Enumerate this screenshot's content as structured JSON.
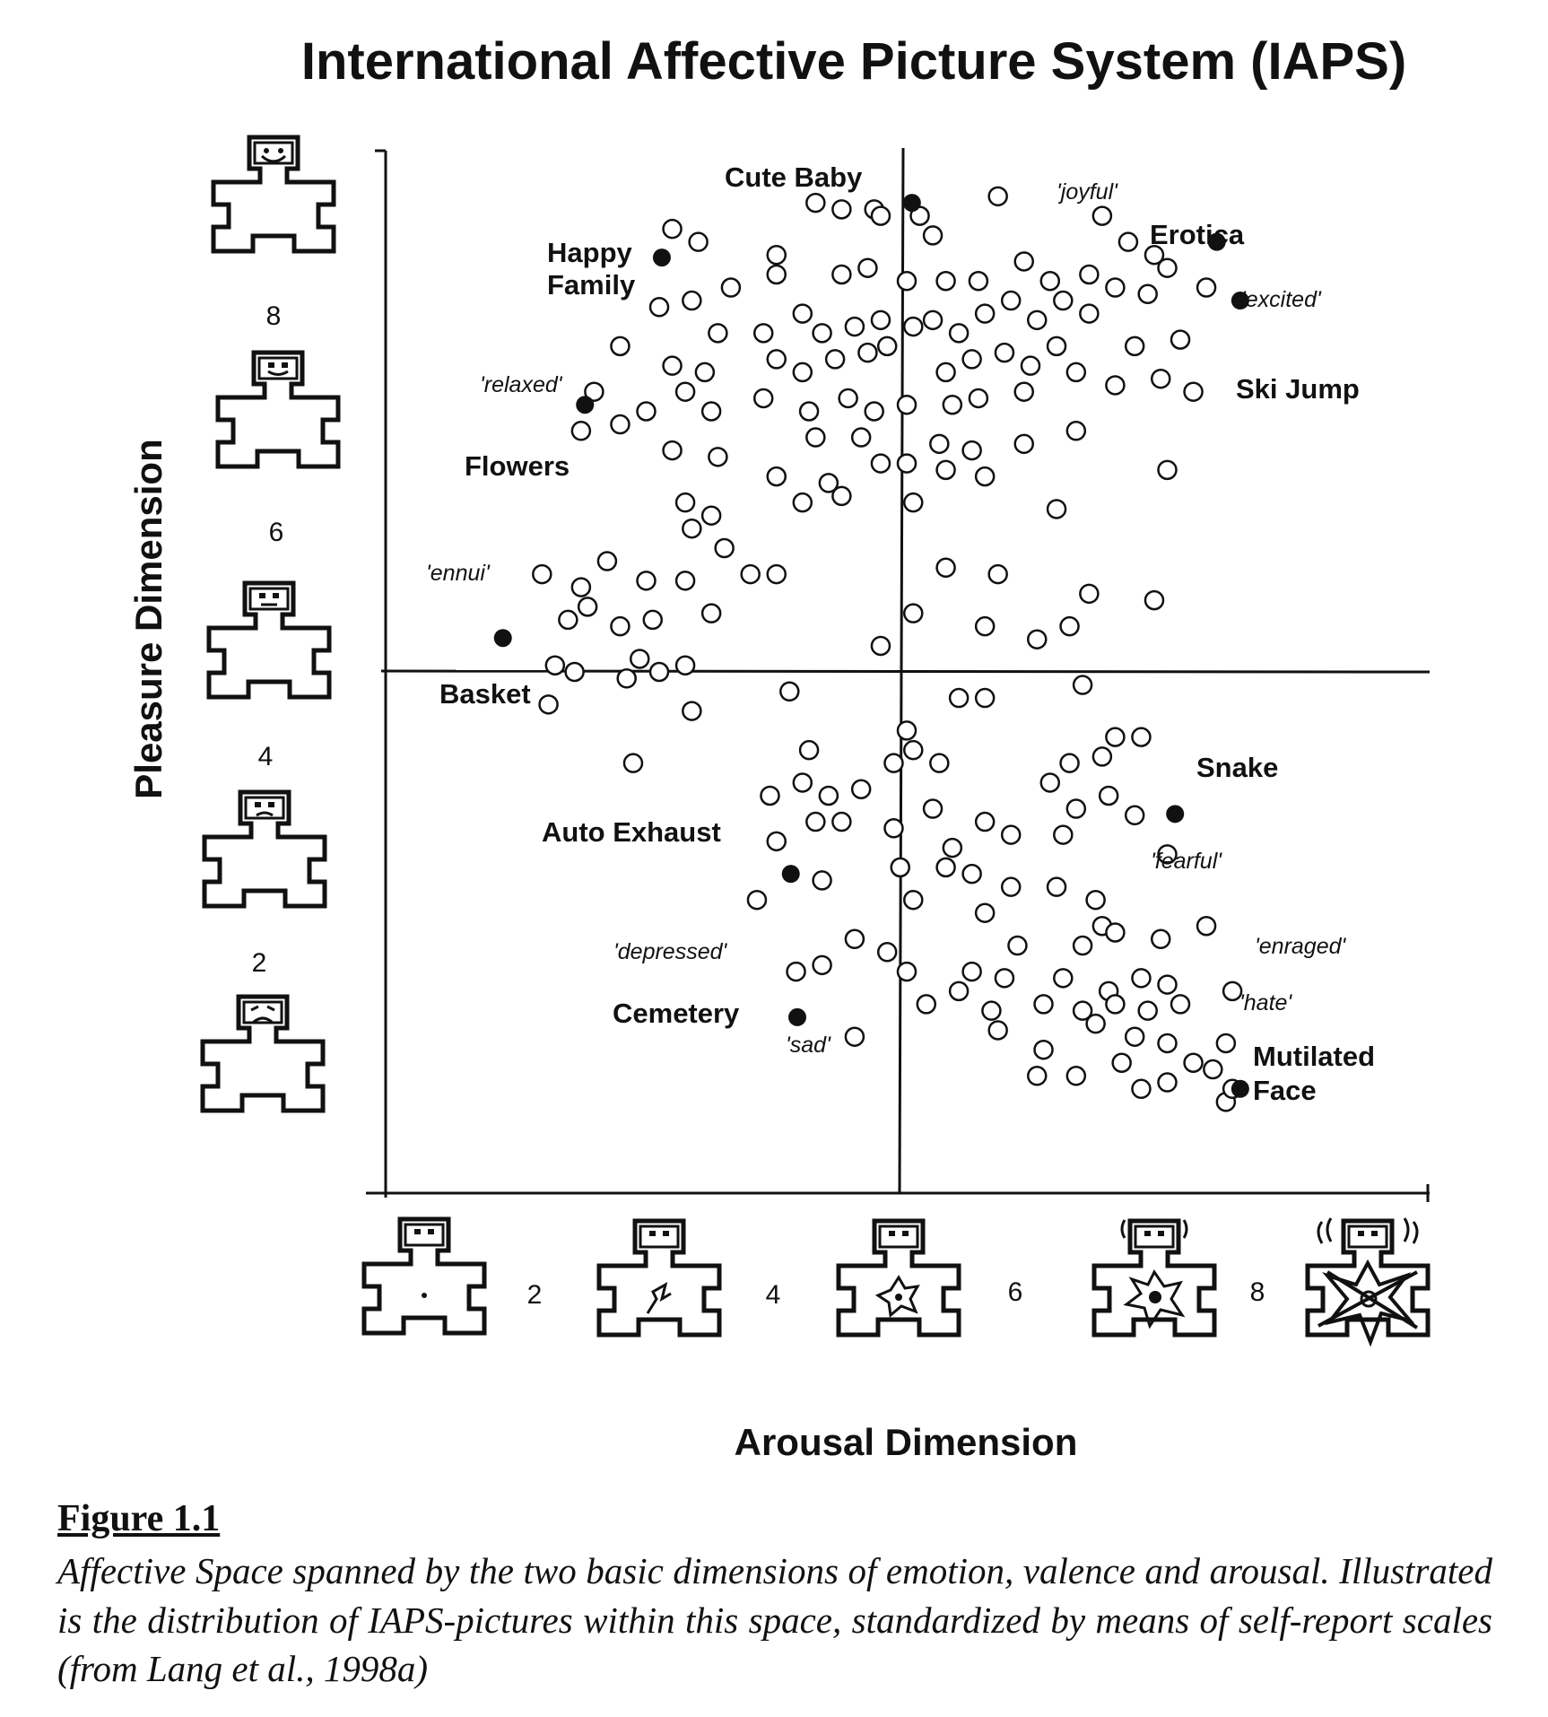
{
  "chart_data": {
    "type": "scatter",
    "title": "International Affective Picture System (IAPS)",
    "xlabel": "Arousal Dimension",
    "ylabel": "Pleasure Dimension",
    "xlim": [
      1,
      9
    ],
    "ylim": [
      1,
      9
    ],
    "x_ticks": [
      "2",
      "4",
      "6",
      "8"
    ],
    "y_ticks": [
      "8",
      "6",
      "4",
      "2"
    ],
    "center_lines": {
      "x": 5,
      "y": 5
    },
    "legend": "none",
    "grid": false,
    "colors": {
      "marker_stroke": "#111111",
      "labeled_fill": "#111111",
      "cluster_fill": "#ffffff"
    },
    "icons": {
      "y_axis": [
        "sam-pleasure-8-icon",
        "sam-pleasure-6-icon",
        "sam-pleasure-4-icon",
        "sam-pleasure-2-icon",
        "sam-pleasure-1-icon"
      ],
      "x_axis": [
        "sam-arousal-1-icon",
        "sam-arousal-3-icon",
        "sam-arousal-5-icon",
        "sam-arousal-7-icon",
        "sam-arousal-9-icon"
      ]
    },
    "labeled_points": [
      {
        "name": "Cute Baby",
        "x": 5.04,
        "y": 8.6
      },
      {
        "name": "Happy Family",
        "x": 3.12,
        "y": 8.18
      },
      {
        "name": "Erotica",
        "x": 7.38,
        "y": 8.3
      },
      {
        "name": "Ski Jump",
        "x": 7.56,
        "y": 7.85
      },
      {
        "name": "Flowers",
        "x": 2.53,
        "y": 7.05
      },
      {
        "name": "Basket",
        "x": 1.9,
        "y": 5.26
      },
      {
        "name": "Snake",
        "x": 7.06,
        "y": 3.91
      },
      {
        "name": "Auto Exhaust",
        "x": 4.11,
        "y": 3.45
      },
      {
        "name": "Cemetery",
        "x": 4.16,
        "y": 2.35
      },
      {
        "name": "Mutilated Face",
        "x": 7.56,
        "y": 1.8
      }
    ],
    "emotion_labels": [
      "'joyful'",
      "'excited'",
      "'relaxed'",
      "'ennui'",
      "'fearful'",
      "'enraged'",
      "'hate'",
      "'depressed'",
      "'sad'"
    ],
    "cluster_points": [
      {
        "x": 3.2,
        "y": 8.4
      },
      {
        "x": 3.4,
        "y": 8.3
      },
      {
        "x": 4.3,
        "y": 8.6
      },
      {
        "x": 4.5,
        "y": 8.55
      },
      {
        "x": 4.75,
        "y": 8.55
      },
      {
        "x": 4.8,
        "y": 8.5
      },
      {
        "x": 5.1,
        "y": 8.5
      },
      {
        "x": 5.2,
        "y": 8.35
      },
      {
        "x": 5.7,
        "y": 8.65
      },
      {
        "x": 6.5,
        "y": 8.5
      },
      {
        "x": 6.7,
        "y": 8.3
      },
      {
        "x": 6.9,
        "y": 8.2
      },
      {
        "x": 7.0,
        "y": 8.1
      },
      {
        "x": 4.0,
        "y": 8.2
      },
      {
        "x": 4.0,
        "y": 8.05
      },
      {
        "x": 4.5,
        "y": 8.05
      },
      {
        "x": 4.7,
        "y": 8.1
      },
      {
        "x": 5.0,
        "y": 8.0
      },
      {
        "x": 5.3,
        "y": 8.0
      },
      {
        "x": 5.55,
        "y": 8.0
      },
      {
        "x": 5.9,
        "y": 8.15
      },
      {
        "x": 6.1,
        "y": 8.0
      },
      {
        "x": 6.4,
        "y": 8.05
      },
      {
        "x": 6.6,
        "y": 7.95
      },
      {
        "x": 6.85,
        "y": 7.9
      },
      {
        "x": 7.3,
        "y": 7.95
      },
      {
        "x": 3.65,
        "y": 7.95
      },
      {
        "x": 3.1,
        "y": 7.8
      },
      {
        "x": 3.35,
        "y": 7.85
      },
      {
        "x": 3.55,
        "y": 7.6
      },
      {
        "x": 3.9,
        "y": 7.6
      },
      {
        "x": 4.2,
        "y": 7.75
      },
      {
        "x": 4.35,
        "y": 7.6
      },
      {
        "x": 4.6,
        "y": 7.65
      },
      {
        "x": 4.8,
        "y": 7.7
      },
      {
        "x": 5.05,
        "y": 7.65
      },
      {
        "x": 5.2,
        "y": 7.7
      },
      {
        "x": 5.4,
        "y": 7.6
      },
      {
        "x": 5.6,
        "y": 7.75
      },
      {
        "x": 5.8,
        "y": 7.85
      },
      {
        "x": 6.0,
        "y": 7.7
      },
      {
        "x": 6.2,
        "y": 7.85
      },
      {
        "x": 6.4,
        "y": 7.75
      },
      {
        "x": 6.75,
        "y": 7.5
      },
      {
        "x": 7.1,
        "y": 7.55
      },
      {
        "x": 2.8,
        "y": 7.5
      },
      {
        "x": 3.2,
        "y": 7.35
      },
      {
        "x": 3.45,
        "y": 7.3
      },
      {
        "x": 4.0,
        "y": 7.4
      },
      {
        "x": 4.2,
        "y": 7.3
      },
      {
        "x": 4.45,
        "y": 7.4
      },
      {
        "x": 4.7,
        "y": 7.45
      },
      {
        "x": 4.85,
        "y": 7.5
      },
      {
        "x": 5.3,
        "y": 7.3
      },
      {
        "x": 5.5,
        "y": 7.4
      },
      {
        "x": 5.75,
        "y": 7.45
      },
      {
        "x": 5.95,
        "y": 7.35
      },
      {
        "x": 6.15,
        "y": 7.5
      },
      {
        "x": 6.3,
        "y": 7.3
      },
      {
        "x": 6.6,
        "y": 7.2
      },
      {
        "x": 6.95,
        "y": 7.25
      },
      {
        "x": 2.6,
        "y": 7.15
      },
      {
        "x": 3.0,
        "y": 7.0
      },
      {
        "x": 3.3,
        "y": 7.15
      },
      {
        "x": 3.5,
        "y": 7.0
      },
      {
        "x": 3.9,
        "y": 7.1
      },
      {
        "x": 4.25,
        "y": 7.0
      },
      {
        "x": 4.55,
        "y": 7.1
      },
      {
        "x": 4.75,
        "y": 7.0
      },
      {
        "x": 5.0,
        "y": 7.05
      },
      {
        "x": 5.35,
        "y": 7.05
      },
      {
        "x": 5.55,
        "y": 7.1
      },
      {
        "x": 5.9,
        "y": 7.15
      },
      {
        "x": 7.2,
        "y": 7.15
      },
      {
        "x": 2.5,
        "y": 6.85
      },
      {
        "x": 2.8,
        "y": 6.9
      },
      {
        "x": 3.2,
        "y": 6.7
      },
      {
        "x": 3.55,
        "y": 6.65
      },
      {
        "x": 4.3,
        "y": 6.8
      },
      {
        "x": 4.65,
        "y": 6.8
      },
      {
        "x": 5.25,
        "y": 6.75
      },
      {
        "x": 5.5,
        "y": 6.7
      },
      {
        "x": 5.9,
        "y": 6.75
      },
      {
        "x": 6.3,
        "y": 6.85
      },
      {
        "x": 4.0,
        "y": 6.5
      },
      {
        "x": 4.4,
        "y": 6.45
      },
      {
        "x": 4.8,
        "y": 6.6
      },
      {
        "x": 5.0,
        "y": 6.6
      },
      {
        "x": 5.3,
        "y": 6.55
      },
      {
        "x": 5.6,
        "y": 6.5
      },
      {
        "x": 7.0,
        "y": 6.55
      },
      {
        "x": 3.3,
        "y": 6.3
      },
      {
        "x": 3.5,
        "y": 6.2
      },
      {
        "x": 4.2,
        "y": 6.3
      },
      {
        "x": 4.5,
        "y": 6.35
      },
      {
        "x": 5.05,
        "y": 6.3
      },
      {
        "x": 6.15,
        "y": 6.25
      },
      {
        "x": 3.35,
        "y": 6.1
      },
      {
        "x": 2.2,
        "y": 5.75
      },
      {
        "x": 2.5,
        "y": 5.65
      },
      {
        "x": 2.7,
        "y": 5.85
      },
      {
        "x": 3.0,
        "y": 5.7
      },
      {
        "x": 3.3,
        "y": 5.7
      },
      {
        "x": 3.6,
        "y": 5.95
      },
      {
        "x": 3.8,
        "y": 5.75
      },
      {
        "x": 4.0,
        "y": 5.75
      },
      {
        "x": 5.3,
        "y": 5.8
      },
      {
        "x": 5.7,
        "y": 5.75
      },
      {
        "x": 6.4,
        "y": 5.6
      },
      {
        "x": 6.9,
        "y": 5.55
      },
      {
        "x": 2.4,
        "y": 5.4
      },
      {
        "x": 2.55,
        "y": 5.5
      },
      {
        "x": 2.8,
        "y": 5.35
      },
      {
        "x": 3.05,
        "y": 5.4
      },
      {
        "x": 3.5,
        "y": 5.45
      },
      {
        "x": 4.8,
        "y": 5.2
      },
      {
        "x": 5.05,
        "y": 5.45
      },
      {
        "x": 5.6,
        "y": 5.35
      },
      {
        "x": 6.0,
        "y": 5.25
      },
      {
        "x": 6.25,
        "y": 5.35
      },
      {
        "x": 2.3,
        "y": 5.05
      },
      {
        "x": 2.45,
        "y": 5.0
      },
      {
        "x": 2.85,
        "y": 4.95
      },
      {
        "x": 3.1,
        "y": 5.0
      },
      {
        "x": 3.3,
        "y": 5.05
      },
      {
        "x": 2.95,
        "y": 5.1
      },
      {
        "x": 2.25,
        "y": 4.75
      },
      {
        "x": 3.35,
        "y": 4.7
      },
      {
        "x": 4.1,
        "y": 4.85
      },
      {
        "x": 5.4,
        "y": 4.8
      },
      {
        "x": 5.6,
        "y": 4.8
      },
      {
        "x": 6.35,
        "y": 4.9
      },
      {
        "x": 5.0,
        "y": 4.55
      },
      {
        "x": 5.05,
        "y": 4.4
      },
      {
        "x": 5.25,
        "y": 4.3
      },
      {
        "x": 6.6,
        "y": 4.5
      },
      {
        "x": 6.8,
        "y": 4.5
      },
      {
        "x": 2.9,
        "y": 4.3
      },
      {
        "x": 4.25,
        "y": 4.4
      },
      {
        "x": 4.9,
        "y": 4.3
      },
      {
        "x": 6.1,
        "y": 4.15
      },
      {
        "x": 6.25,
        "y": 4.3
      },
      {
        "x": 6.5,
        "y": 4.35
      },
      {
        "x": 3.95,
        "y": 4.05
      },
      {
        "x": 4.2,
        "y": 4.15
      },
      {
        "x": 4.4,
        "y": 4.05
      },
      {
        "x": 4.65,
        "y": 4.1
      },
      {
        "x": 5.2,
        "y": 3.95
      },
      {
        "x": 5.6,
        "y": 3.85
      },
      {
        "x": 6.3,
        "y": 3.95
      },
      {
        "x": 6.55,
        "y": 4.05
      },
      {
        "x": 6.75,
        "y": 3.9
      },
      {
        "x": 4.0,
        "y": 3.7
      },
      {
        "x": 4.3,
        "y": 3.85
      },
      {
        "x": 4.5,
        "y": 3.85
      },
      {
        "x": 4.9,
        "y": 3.8
      },
      {
        "x": 5.35,
        "y": 3.65
      },
      {
        "x": 5.8,
        "y": 3.75
      },
      {
        "x": 6.2,
        "y": 3.75
      },
      {
        "x": 7.0,
        "y": 3.6
      },
      {
        "x": 4.35,
        "y": 3.4
      },
      {
        "x": 4.95,
        "y": 3.5
      },
      {
        "x": 5.3,
        "y": 3.5
      },
      {
        "x": 5.5,
        "y": 3.45
      },
      {
        "x": 5.8,
        "y": 3.35
      },
      {
        "x": 6.15,
        "y": 3.35
      },
      {
        "x": 6.45,
        "y": 3.25
      },
      {
        "x": 3.85,
        "y": 3.25
      },
      {
        "x": 5.05,
        "y": 3.25
      },
      {
        "x": 5.6,
        "y": 3.15
      },
      {
        "x": 6.5,
        "y": 3.05
      },
      {
        "x": 4.6,
        "y": 2.95
      },
      {
        "x": 4.85,
        "y": 2.85
      },
      {
        "x": 5.85,
        "y": 2.9
      },
      {
        "x": 6.35,
        "y": 2.9
      },
      {
        "x": 6.6,
        "y": 3.0
      },
      {
        "x": 6.95,
        "y": 2.95
      },
      {
        "x": 7.3,
        "y": 3.05
      },
      {
        "x": 4.15,
        "y": 2.7
      },
      {
        "x": 4.35,
        "y": 2.75
      },
      {
        "x": 5.0,
        "y": 2.7
      },
      {
        "x": 5.4,
        "y": 2.55
      },
      {
        "x": 5.5,
        "y": 2.7
      },
      {
        "x": 5.75,
        "y": 2.65
      },
      {
        "x": 6.2,
        "y": 2.65
      },
      {
        "x": 6.55,
        "y": 2.55
      },
      {
        "x": 6.8,
        "y": 2.65
      },
      {
        "x": 7.0,
        "y": 2.6
      },
      {
        "x": 7.5,
        "y": 2.55
      },
      {
        "x": 5.15,
        "y": 2.45
      },
      {
        "x": 5.65,
        "y": 2.4
      },
      {
        "x": 6.05,
        "y": 2.45
      },
      {
        "x": 6.35,
        "y": 2.4
      },
      {
        "x": 6.6,
        "y": 2.45
      },
      {
        "x": 6.85,
        "y": 2.4
      },
      {
        "x": 7.1,
        "y": 2.45
      },
      {
        "x": 5.7,
        "y": 2.25
      },
      {
        "x": 6.45,
        "y": 2.3
      },
      {
        "x": 6.75,
        "y": 2.2
      },
      {
        "x": 7.0,
        "y": 2.15
      },
      {
        "x": 7.45,
        "y": 2.15
      },
      {
        "x": 6.05,
        "y": 2.1
      },
      {
        "x": 6.65,
        "y": 2.0
      },
      {
        "x": 7.2,
        "y": 2.0
      },
      {
        "x": 7.35,
        "y": 1.95
      },
      {
        "x": 4.6,
        "y": 2.2
      },
      {
        "x": 6.0,
        "y": 1.9
      },
      {
        "x": 6.3,
        "y": 1.9
      },
      {
        "x": 6.8,
        "y": 1.8
      },
      {
        "x": 7.0,
        "y": 1.85
      },
      {
        "x": 7.45,
        "y": 1.7
      },
      {
        "x": 7.5,
        "y": 1.8
      }
    ]
  },
  "caption": {
    "figure_label": "Figure 1.1",
    "text": "Affective Space spanned by the two basic dimensions of emotion, valence and arousal. Illustrated is the distribution of IAPS-pictures within this space, standardized by means of self-report scales (from Lang et al., 1998a)"
  }
}
